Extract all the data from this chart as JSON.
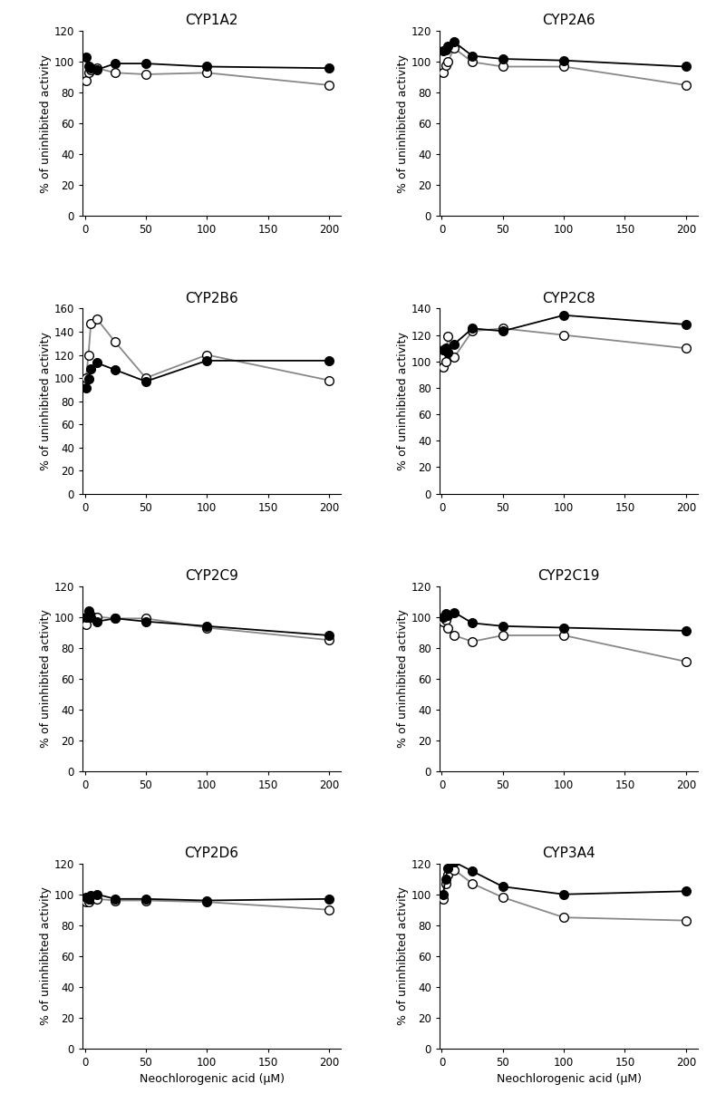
{
  "plots": [
    {
      "title": "CYP1A2",
      "ylim": [
        0,
        120
      ],
      "yticks": [
        0,
        20,
        40,
        60,
        80,
        100,
        120
      ],
      "xlim": [
        -2,
        210
      ],
      "xticks": [
        0,
        50,
        100,
        150,
        200
      ],
      "filled": {
        "x": [
          1,
          3,
          5,
          10,
          25,
          50,
          100,
          200
        ],
        "y": [
          103,
          97,
          96,
          95,
          99,
          99,
          97,
          96
        ]
      },
      "open": {
        "x": [
          1,
          3,
          5,
          10,
          25,
          50,
          100,
          200
        ],
        "y": [
          88,
          93,
          95,
          96,
          93,
          92,
          93,
          85
        ]
      }
    },
    {
      "title": "CYP2A6",
      "ylim": [
        0,
        120
      ],
      "yticks": [
        0,
        20,
        40,
        60,
        80,
        100,
        120
      ],
      "xlim": [
        -2,
        210
      ],
      "xticks": [
        0,
        50,
        100,
        150,
        200
      ],
      "filled": {
        "x": [
          1,
          3,
          5,
          10,
          25,
          50,
          100,
          200
        ],
        "y": [
          107,
          108,
          110,
          113,
          104,
          102,
          101,
          97
        ]
      },
      "open": {
        "x": [
          1,
          3,
          5,
          10,
          25,
          50,
          100,
          200
        ],
        "y": [
          93,
          98,
          100,
          109,
          100,
          97,
          97,
          85
        ]
      }
    },
    {
      "title": "CYP2B6",
      "ylim": [
        0,
        160
      ],
      "yticks": [
        0,
        20,
        40,
        60,
        80,
        100,
        120,
        140,
        160
      ],
      "xlim": [
        -2,
        210
      ],
      "xticks": [
        0,
        50,
        100,
        150,
        200
      ],
      "filled": {
        "x": [
          1,
          3,
          5,
          10,
          25,
          50,
          100,
          200
        ],
        "y": [
          91,
          99,
          108,
          113,
          107,
          97,
          115,
          115
        ]
      },
      "open": {
        "x": [
          1,
          3,
          5,
          10,
          25,
          50,
          100,
          200
        ],
        "y": [
          100,
          120,
          147,
          151,
          131,
          100,
          120,
          98
        ]
      }
    },
    {
      "title": "CYP2C8",
      "ylim": [
        0,
        140
      ],
      "yticks": [
        0,
        20,
        40,
        60,
        80,
        100,
        120,
        140
      ],
      "xlim": [
        -2,
        210
      ],
      "xticks": [
        0,
        50,
        100,
        150,
        200
      ],
      "filled": {
        "x": [
          1,
          3,
          5,
          10,
          25,
          50,
          100,
          200
        ],
        "y": [
          109,
          110,
          107,
          113,
          125,
          123,
          135,
          128
        ]
      },
      "open": {
        "x": [
          1,
          3,
          5,
          10,
          25,
          50,
          100,
          200
        ],
        "y": [
          96,
          100,
          119,
          103,
          123,
          125,
          120,
          110
        ]
      }
    },
    {
      "title": "CYP2C9",
      "ylim": [
        0,
        120
      ],
      "yticks": [
        0,
        20,
        40,
        60,
        80,
        100,
        120
      ],
      "xlim": [
        -2,
        210
      ],
      "xticks": [
        0,
        50,
        100,
        150,
        200
      ],
      "filled": {
        "x": [
          1,
          3,
          5,
          10,
          25,
          50,
          100,
          200
        ],
        "y": [
          100,
          104,
          100,
          97,
          99,
          97,
          94,
          88
        ]
      },
      "open": {
        "x": [
          1,
          3,
          5,
          10,
          25,
          50,
          100,
          200
        ],
        "y": [
          95,
          100,
          101,
          100,
          99,
          99,
          93,
          85
        ]
      }
    },
    {
      "title": "CYP2C19",
      "ylim": [
        0,
        120
      ],
      "yticks": [
        0,
        20,
        40,
        60,
        80,
        100,
        120
      ],
      "xlim": [
        -2,
        210
      ],
      "xticks": [
        0,
        50,
        100,
        150,
        200
      ],
      "filled": {
        "x": [
          1,
          3,
          5,
          10,
          25,
          50,
          100,
          200
        ],
        "y": [
          100,
          102,
          101,
          103,
          96,
          94,
          93,
          91
        ]
      },
      "open": {
        "x": [
          1,
          3,
          5,
          10,
          25,
          50,
          100,
          200
        ],
        "y": [
          97,
          98,
          93,
          88,
          84,
          88,
          88,
          71
        ]
      }
    },
    {
      "title": "CYP2D6",
      "ylim": [
        0,
        120
      ],
      "yticks": [
        0,
        20,
        40,
        60,
        80,
        100,
        120
      ],
      "xlim": [
        -2,
        210
      ],
      "xticks": [
        0,
        50,
        100,
        150,
        200
      ],
      "filled": {
        "x": [
          1,
          3,
          5,
          10,
          25,
          50,
          100,
          200
        ],
        "y": [
          98,
          97,
          99,
          100,
          97,
          97,
          96,
          97
        ]
      },
      "open": {
        "x": [
          1,
          3,
          5,
          10,
          25,
          50,
          100,
          200
        ],
        "y": [
          95,
          95,
          97,
          97,
          96,
          96,
          95,
          90
        ]
      }
    },
    {
      "title": "CYP3A4",
      "ylim": [
        0,
        120
      ],
      "yticks": [
        0,
        20,
        40,
        60,
        80,
        100,
        120
      ],
      "xlim": [
        -2,
        210
      ],
      "xticks": [
        0,
        50,
        100,
        150,
        200
      ],
      "filled": {
        "x": [
          1,
          3,
          5,
          10,
          25,
          50,
          100,
          200
        ],
        "y": [
          100,
          110,
          117,
          121,
          115,
          105,
          100,
          102
        ]
      },
      "open": {
        "x": [
          1,
          3,
          5,
          10,
          25,
          50,
          100,
          200
        ],
        "y": [
          97,
          107,
          113,
          116,
          107,
          98,
          85,
          83
        ]
      }
    }
  ],
  "xlabel": "Neochlorogenic acid (μM)",
  "ylabel": "% of uninhibited activity",
  "line_color_filled": "#000000",
  "line_color_open": "#888888",
  "marker_size": 7,
  "line_width": 1.3,
  "font_size_title": 11,
  "font_size_label": 9,
  "font_size_tick": 8.5
}
